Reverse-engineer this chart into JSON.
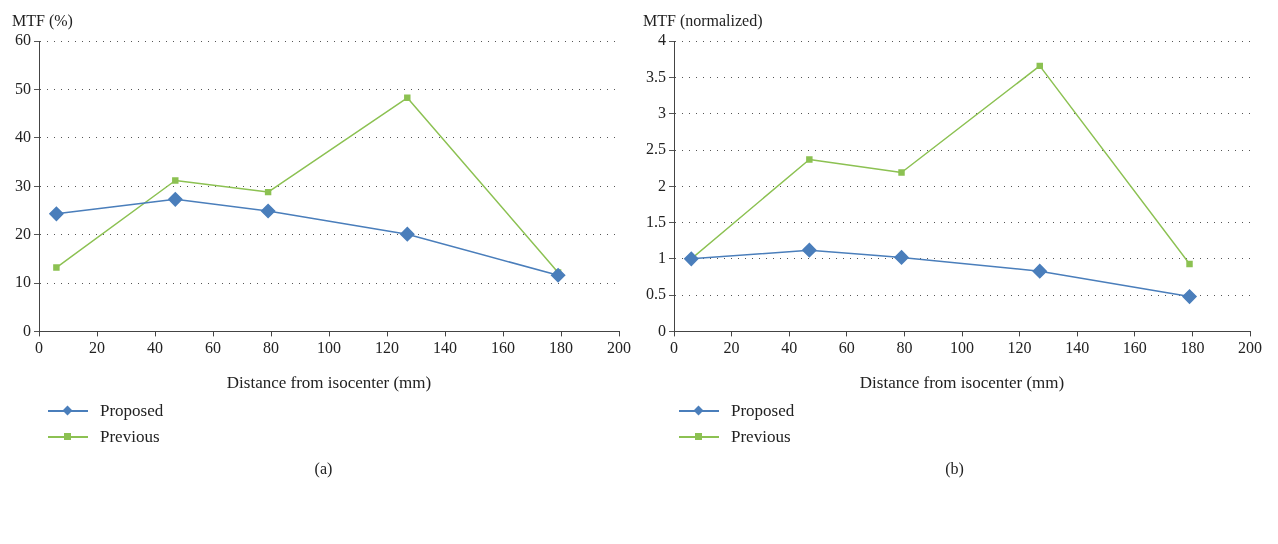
{
  "chart_data": [
    {
      "type": "line",
      "ylabel": "MTF (%)",
      "xlabel": "Distance from isocenter (mm)",
      "annotations": [
        "(a)"
      ],
      "x": [
        6,
        47,
        79,
        127,
        179
      ],
      "series": [
        {
          "name": "Proposed",
          "color": "#4a7ebb",
          "values": [
            24.3,
            27.3,
            24.9,
            20.1,
            11.6
          ],
          "marker": "diamond"
        },
        {
          "name": "Previous",
          "color": "#8cc152",
          "values": [
            13.2,
            31.2,
            28.8,
            48.3,
            12.2
          ],
          "marker": "square"
        }
      ],
      "xlim": [
        0,
        200
      ],
      "xticks": [
        0,
        20,
        40,
        60,
        80,
        100,
        120,
        140,
        160,
        180,
        200
      ],
      "ylim": [
        0,
        60
      ],
      "yticks": [
        0,
        10,
        20,
        30,
        40,
        50,
        60
      ],
      "grid": "y",
      "legend": "bottom left"
    },
    {
      "type": "line",
      "ylabel": "MTF (normalized)",
      "xlabel": "Distance from isocenter (mm)",
      "annotations": [
        "(b)"
      ],
      "x": [
        6,
        47,
        79,
        127,
        179
      ],
      "series": [
        {
          "name": "Proposed",
          "color": "#4a7ebb",
          "values": [
            1.0,
            1.12,
            1.02,
            0.83,
            0.48
          ],
          "marker": "diamond"
        },
        {
          "name": "Previous",
          "color": "#8cc152",
          "values": [
            1.0,
            2.37,
            2.19,
            3.66,
            0.93
          ],
          "marker": "square"
        }
      ],
      "xlim": [
        0,
        200
      ],
      "xticks": [
        0,
        20,
        40,
        60,
        80,
        100,
        120,
        140,
        160,
        180,
        200
      ],
      "ylim": [
        0,
        4
      ],
      "yticks": [
        0,
        0.5,
        1,
        1.5,
        2,
        2.5,
        3,
        3.5,
        4
      ],
      "grid": "y",
      "legend": "bottom left"
    }
  ]
}
